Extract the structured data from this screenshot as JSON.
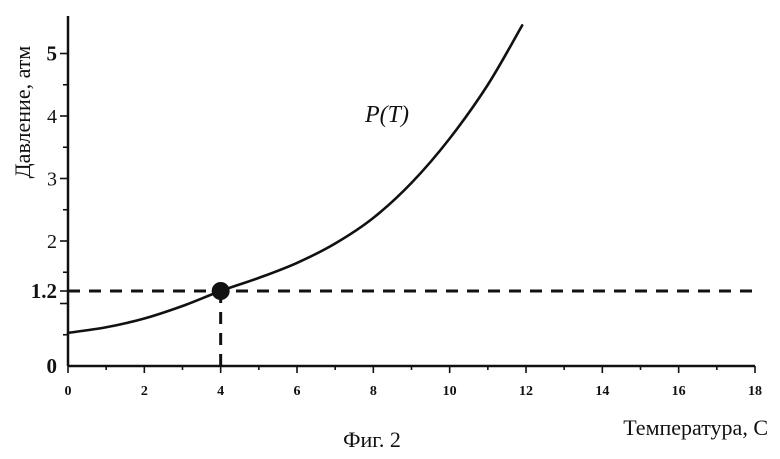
{
  "chart_data": {
    "type": "line",
    "caption": "Фиг. 2",
    "xlabel": "Температура, С",
    "ylabel": "Давление, атм",
    "xlim": [
      0,
      18
    ],
    "ylim": [
      0,
      5.5
    ],
    "x_ticks": [
      {
        "value": 0,
        "label": "0"
      },
      {
        "value": 2,
        "label": "2"
      },
      {
        "value": 4,
        "label": "4"
      },
      {
        "value": 6,
        "label": "6"
      },
      {
        "value": 8,
        "label": "8"
      },
      {
        "value": 10,
        "label": "10"
      },
      {
        "value": 12,
        "label": "12"
      },
      {
        "value": 14,
        "label": "14"
      },
      {
        "value": 16,
        "label": "16"
      },
      {
        "value": 18,
        "label": "18"
      }
    ],
    "y_ticks": [
      {
        "value": 0,
        "label": "0",
        "bold": true
      },
      {
        "value": 1.2,
        "label": "1.2",
        "bold": true
      },
      {
        "value": 2,
        "label": "2",
        "bold": false
      },
      {
        "value": 3,
        "label": "3",
        "bold": false
      },
      {
        "value": 4,
        "label": "4",
        "bold": false
      },
      {
        "value": 5,
        "label": "5",
        "bold": true
      }
    ],
    "grid": false,
    "series": [
      {
        "name": "P(T)",
        "x": [
          0,
          1,
          2,
          3,
          4,
          5,
          6,
          7,
          8,
          9,
          10,
          11,
          11.9
        ],
        "y": [
          0.53,
          0.62,
          0.76,
          0.96,
          1.2,
          1.41,
          1.65,
          1.96,
          2.37,
          2.93,
          3.64,
          4.5,
          5.45
        ]
      }
    ],
    "marked_point": {
      "x": 4,
      "y": 1.2
    },
    "reference_lines": {
      "horizontal": {
        "y": 1.2,
        "x_from": 0,
        "x_to": 18
      },
      "vertical": {
        "x": 4,
        "y_from": 0,
        "y_to": 1.2
      }
    }
  }
}
